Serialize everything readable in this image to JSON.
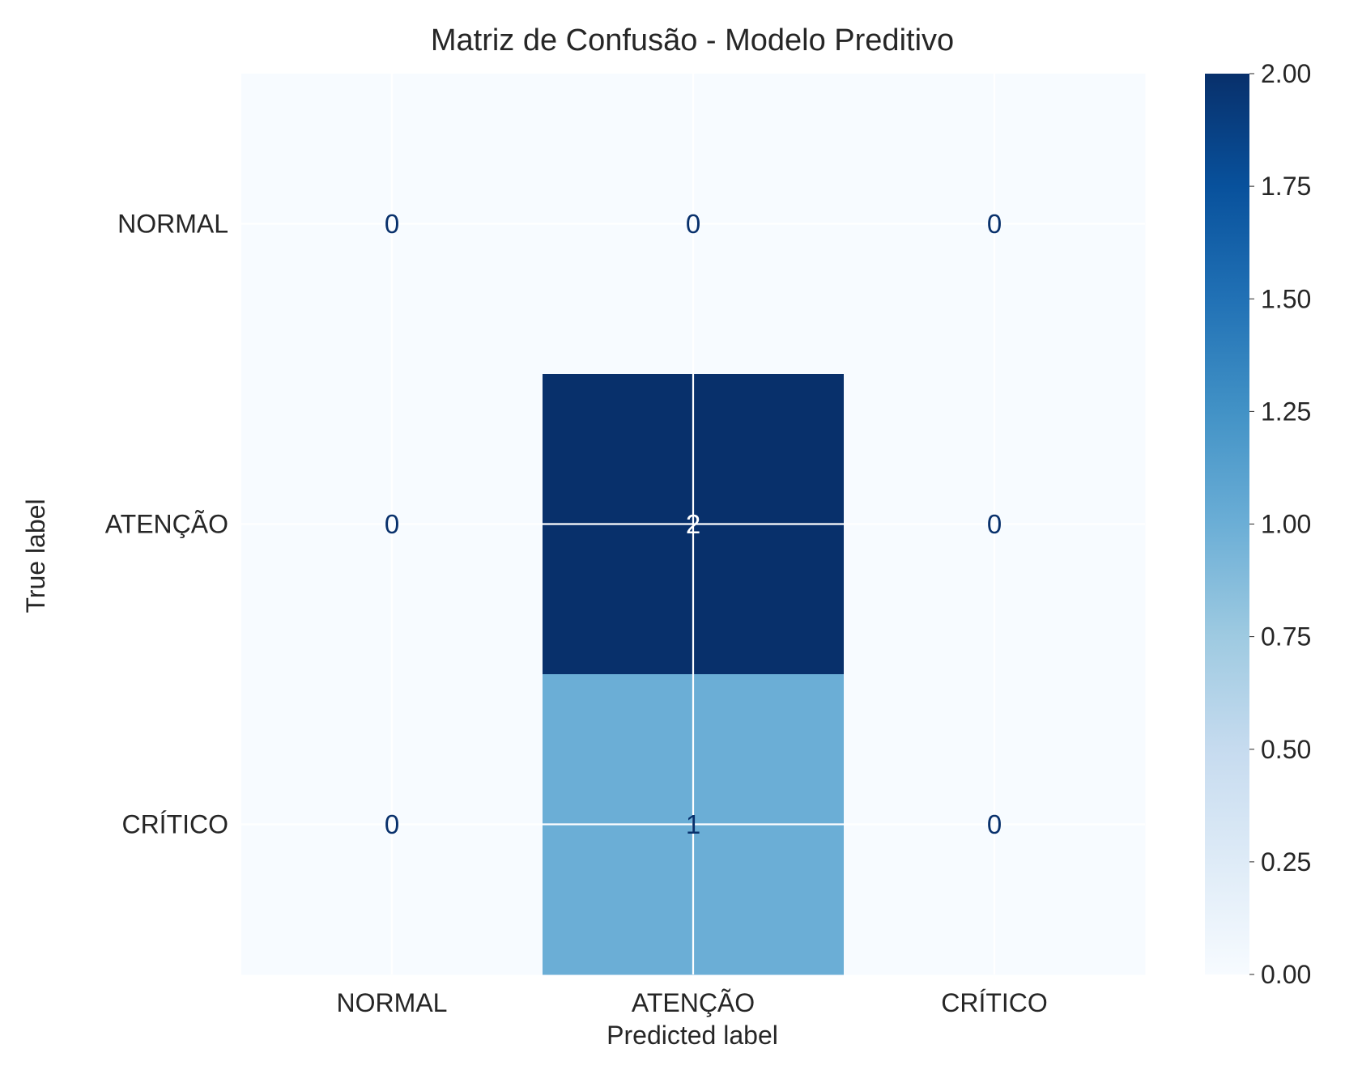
{
  "chart_data": {
    "type": "heatmap",
    "title": "Matriz de Confusão - Modelo Preditivo",
    "xlabel": "Predicted label",
    "ylabel": "True label",
    "x_categories": [
      "NORMAL",
      "ATENÇÃO",
      "CRÍTICO"
    ],
    "y_categories": [
      "NORMAL",
      "ATENÇÃO",
      "CRÍTICO"
    ],
    "matrix": [
      [
        0,
        0,
        0
      ],
      [
        0,
        2,
        0
      ],
      [
        0,
        1,
        0
      ]
    ],
    "colormap": "Blues",
    "value_range": [
      0,
      2
    ],
    "colorbar_ticks": [
      "0.00",
      "0.25",
      "0.50",
      "0.75",
      "1.00",
      "1.25",
      "1.50",
      "1.75",
      "2.00"
    ],
    "colorbar_tick_values": [
      0,
      0.25,
      0.5,
      0.75,
      1,
      1.25,
      1.5,
      1.75,
      2
    ],
    "grid": true,
    "colors": {
      "text_dark": "#08306b",
      "text_light": "#ffffff",
      "label_text": "#262626",
      "grid_line": "#ffffff"
    }
  }
}
